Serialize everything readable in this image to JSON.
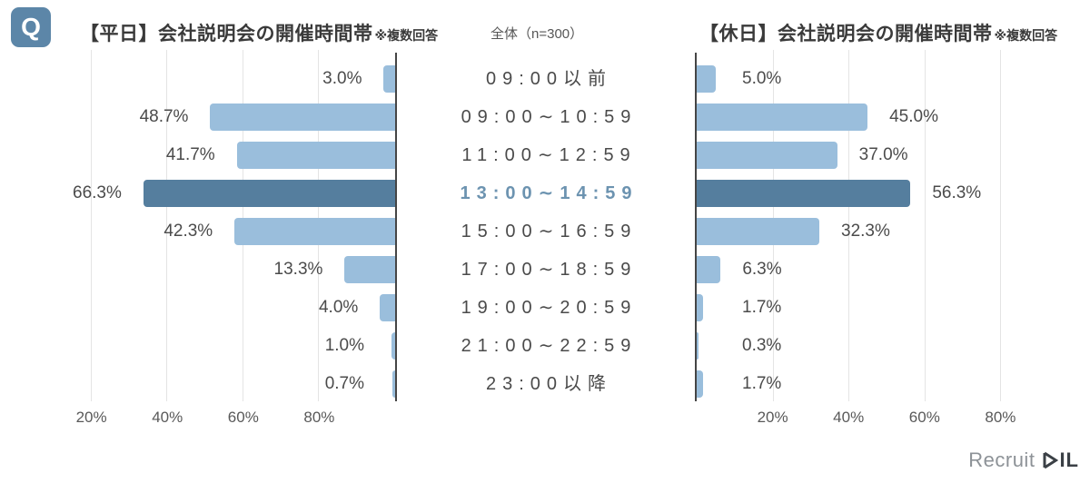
{
  "header": {
    "q_badge": "Q",
    "weekday_title": "【平日】会社説明会の開催時間帯",
    "weekday_note": "※複数回答",
    "sample_label": "全体（n=300）",
    "holiday_title": "【休日】会社説明会の開催時間帯",
    "holiday_note": "※複数回答"
  },
  "chart_data": {
    "type": "bar",
    "layout": "butterfly-horizontal",
    "title_left": "【平日】会社説明会の開催時間帯",
    "title_right": "【休日】会社説明会の開催時間帯",
    "sample_size": "n=300",
    "categories": [
      "09:00以前",
      "09:00∼10:59",
      "11:00∼12:59",
      "13:00∼14:59",
      "15:00∼16:59",
      "17:00∼18:59",
      "19:00∼20:59",
      "21:00∼22:59",
      "23:00以降"
    ],
    "highlight_index": 3,
    "highlight_category": "13:00∼14:59",
    "series": [
      {
        "name": "平日",
        "side": "left",
        "values": [
          3.0,
          48.7,
          41.7,
          66.3,
          42.3,
          13.3,
          4.0,
          1.0,
          0.7
        ],
        "labels": [
          "3.0%",
          "48.7%",
          "41.7%",
          "66.3%",
          "42.3%",
          "13.3%",
          "4.0%",
          "1.0%",
          "0.7%"
        ]
      },
      {
        "name": "休日",
        "side": "right",
        "values": [
          5.0,
          45.0,
          37.0,
          56.3,
          32.3,
          6.3,
          1.7,
          0.3,
          1.7
        ],
        "labels": [
          "5.0%",
          "45.0%",
          "37.0%",
          "56.3%",
          "32.3%",
          "6.3%",
          "1.7%",
          "0.3%",
          "1.7%"
        ]
      }
    ],
    "axis": {
      "unit": "%",
      "max": 80,
      "grid": true,
      "left_ticks": [
        "80%",
        "60%",
        "40%",
        "20%"
      ],
      "right_ticks": [
        "20%",
        "40%",
        "60%",
        "80%"
      ],
      "tick_step": 20
    },
    "colors": {
      "bar": "#9abedc",
      "bar_highlight": "#557e9e",
      "category_highlight": "#6c93b0",
      "gridline": "#e4e4e4",
      "baseline": "#454545"
    }
  },
  "footer": {
    "brand": "Recruit",
    "mark": "MIL"
  }
}
